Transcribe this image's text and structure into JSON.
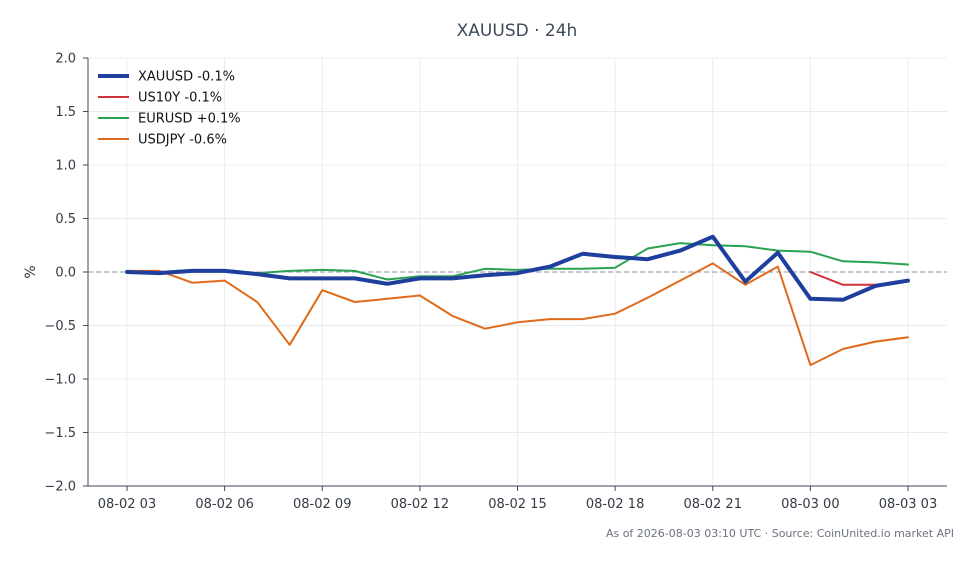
{
  "chart_data": {
    "type": "line",
    "title": "XAUUSD · 24h",
    "xlabel": "",
    "ylabel": "%",
    "ylim": [
      -2.0,
      2.0
    ],
    "yticks": [
      2.0,
      1.5,
      1.0,
      0.5,
      0.0,
      -0.5,
      -1.0,
      -1.5,
      -2.0
    ],
    "ytick_labels": [
      "2.0",
      "1.5",
      "1.0",
      "0.5",
      "0.0",
      "−0.5",
      "−1.0",
      "−1.5",
      "−2.0"
    ],
    "x_start": "08-02 03:00",
    "x_step_hours": 1,
    "xticks": [
      "08-02 03",
      "08-02 06",
      "08-02 09",
      "08-02 12",
      "08-02 15",
      "08-02 18",
      "08-02 21",
      "08-03 00",
      "08-03 03"
    ],
    "zero_line": true,
    "grid": true,
    "legend_position": "top-left",
    "series": [
      {
        "name": "XAUUSD -0.1%",
        "color": "#1f3f9e",
        "bold": true,
        "start_index": 0,
        "values": [
          0.0,
          -0.01,
          0.01,
          0.01,
          -0.02,
          -0.06,
          -0.06,
          -0.06,
          -0.11,
          -0.06,
          -0.06,
          -0.03,
          -0.01,
          0.05,
          0.17,
          0.14,
          0.12,
          0.2,
          0.33,
          -0.09,
          0.18,
          -0.25,
          -0.26,
          -0.13,
          -0.08
        ]
      },
      {
        "name": "US10Y -0.1%",
        "color": "#d0333a",
        "bold": false,
        "start_index": 21,
        "values": [
          0.0,
          -0.12,
          -0.12,
          -0.09
        ]
      },
      {
        "name": "EURUSD +0.1%",
        "color": "#2aa252",
        "bold": false,
        "start_index": 0,
        "values": [
          0.01,
          0.0,
          0.02,
          0.02,
          -0.01,
          0.01,
          0.02,
          0.01,
          -0.07,
          -0.04,
          -0.04,
          0.03,
          0.02,
          0.03,
          0.03,
          0.04,
          0.22,
          0.27,
          0.25,
          0.24,
          0.2,
          0.19,
          0.1,
          0.09,
          0.07
        ]
      },
      {
        "name": "USDJPY -0.6%",
        "color": "#e06a1b",
        "bold": false,
        "start_index": 0,
        "values": [
          0.01,
          0.01,
          -0.1,
          -0.08,
          -0.28,
          -0.68,
          -0.17,
          -0.28,
          -0.25,
          -0.22,
          -0.41,
          -0.53,
          -0.47,
          -0.44,
          -0.44,
          -0.39,
          -0.24,
          -0.08,
          0.08,
          -0.12,
          0.05,
          -0.87,
          -0.72,
          -0.65,
          -0.61
        ]
      }
    ],
    "footer": "As of 2026-08-03 03:10 UTC · Source: CoinUnited.io market API"
  }
}
